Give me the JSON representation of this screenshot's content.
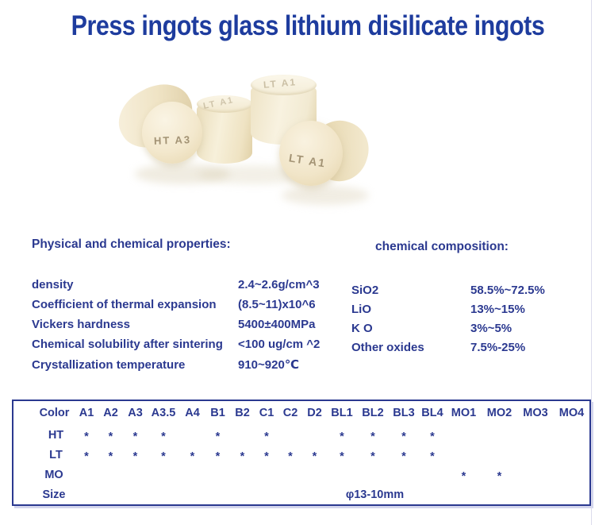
{
  "title": "Press ingots glass lithium disilicate ingots",
  "colors": {
    "text_blue": "#2b3990",
    "title_blue": "#1e3c9e",
    "ingot_cream": "#f3e8cd",
    "table_border": "#2b3990"
  },
  "product": {
    "labels": {
      "left_disc": "HT A3",
      "middle_top": "LT A1",
      "back_top": "LT A1",
      "front_disc": "LT A1"
    }
  },
  "properties": {
    "heading": "Physical and chemical properties:",
    "rows": [
      {
        "label": "density",
        "value": "2.4~2.6g/cm^3"
      },
      {
        "label": "Coefficient of thermal expansion",
        "value": "(8.5~11)x10^6"
      },
      {
        "label": "Vickers hardness",
        "value": "5400±400MPa"
      },
      {
        "label": "Chemical solubility after sintering",
        "value": "<100 ug/cm ^2"
      },
      {
        "label": "Crystallization temperature",
        "value": "910~920℃"
      }
    ]
  },
  "composition": {
    "heading": "chemical composition:",
    "rows": [
      {
        "label": "SiO2",
        "value": "58.5%~72.5%"
      },
      {
        "label": "LiO",
        "value": "13%~15%"
      },
      {
        "label": "K O",
        "value": "3%~5%"
      },
      {
        "label": "Other oxides",
        "value": "7.5%-25%"
      }
    ]
  },
  "shade_table": {
    "header": [
      "Color",
      "A1",
      "A2",
      "A3",
      "A3.5",
      "A4",
      "B1",
      "B2",
      "C1",
      "C2",
      "D2",
      "BL1",
      "BL2",
      "BL3",
      "BL4",
      "MO1",
      "MO2",
      "MO3",
      "MO4"
    ],
    "rows": [
      {
        "name": "HT",
        "cells": [
          "*",
          "*",
          "*",
          "*",
          "",
          "*",
          "",
          "*",
          "",
          "",
          "*",
          "*",
          "*",
          "*",
          "",
          "",
          "",
          ""
        ]
      },
      {
        "name": "LT",
        "cells": [
          "*",
          "*",
          "*",
          "*",
          "*",
          "*",
          "*",
          "*",
          "*",
          "*",
          "*",
          "*",
          "*",
          "*",
          "",
          "",
          "",
          ""
        ]
      },
      {
        "name": "MO",
        "cells": [
          "",
          "",
          "",
          "",
          "",
          "",
          "",
          "",
          "",
          "",
          "",
          "",
          "",
          "",
          "*",
          "*",
          "",
          ""
        ]
      }
    ],
    "size_row": {
      "label": "Size",
      "value": "φ13-10mm"
    }
  }
}
